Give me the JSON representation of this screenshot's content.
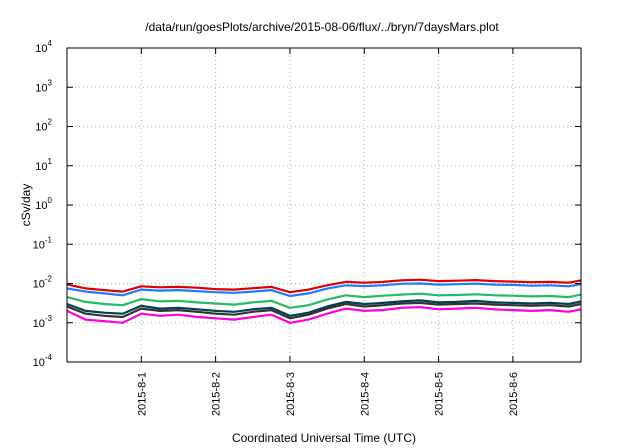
{
  "chart_data": {
    "type": "line",
    "title": "/data/run/goesPlots/archive/2015-08-06/flux/../bryn/7daysMars.plot",
    "xlabel": "Coordinated Universal Time (UTC)",
    "ylabel": "cSv/day",
    "yscale": "log",
    "ylim": [
      0.0001,
      10000
    ],
    "y_ticks": [
      {
        "base": "10",
        "exp": "4",
        "value": 10000
      },
      {
        "base": "10",
        "exp": "3",
        "value": 1000
      },
      {
        "base": "10",
        "exp": "2",
        "value": 100
      },
      {
        "base": "10",
        "exp": "1",
        "value": 10
      },
      {
        "base": "10",
        "exp": "0",
        "value": 1
      },
      {
        "base": "10",
        "exp": "-1",
        "value": 0.1
      },
      {
        "base": "10",
        "exp": "-2",
        "value": 0.01
      },
      {
        "base": "10",
        "exp": "-3",
        "value": 0.001
      },
      {
        "base": "10",
        "exp": "-4",
        "value": 0.0001
      }
    ],
    "xlim": [
      "2015-07-31T00:00",
      "2015-08-06T22:00"
    ],
    "x_ticks": [
      "2015-8-1",
      "2015-8-2",
      "2015-8-3",
      "2015-8-4",
      "2015-8-5",
      "2015-8-6"
    ],
    "grid": true,
    "legend": false,
    "x": [
      "2015-07-31T00:00",
      "2015-07-31T06:00",
      "2015-07-31T12:00",
      "2015-07-31T18:00",
      "2015-08-01T00:00",
      "2015-08-01T06:00",
      "2015-08-01T12:00",
      "2015-08-01T18:00",
      "2015-08-02T00:00",
      "2015-08-02T06:00",
      "2015-08-02T12:00",
      "2015-08-02T18:00",
      "2015-08-03T00:00",
      "2015-08-03T06:00",
      "2015-08-03T12:00",
      "2015-08-03T18:00",
      "2015-08-04T00:00",
      "2015-08-04T06:00",
      "2015-08-04T12:00",
      "2015-08-04T18:00",
      "2015-08-05T00:00",
      "2015-08-05T06:00",
      "2015-08-05T12:00",
      "2015-08-05T18:00",
      "2015-08-06T00:00",
      "2015-08-06T06:00",
      "2015-08-06T12:00",
      "2015-08-06T18:00",
      "2015-08-06T22:00"
    ],
    "series": [
      {
        "color": "#dd0000",
        "values": [
          0.0095,
          0.0075,
          0.0068,
          0.0062,
          0.0085,
          0.008,
          0.0082,
          0.0078,
          0.0072,
          0.007,
          0.0076,
          0.0082,
          0.006,
          0.007,
          0.009,
          0.011,
          0.0105,
          0.011,
          0.012,
          0.0125,
          0.0115,
          0.0118,
          0.0122,
          0.0115,
          0.0112,
          0.0108,
          0.011,
          0.0105,
          0.012
        ]
      },
      {
        "color": "#1e7bff",
        "values": [
          0.0075,
          0.0062,
          0.0056,
          0.005,
          0.007,
          0.0066,
          0.0068,
          0.0064,
          0.006,
          0.0058,
          0.0062,
          0.0068,
          0.0048,
          0.0056,
          0.0074,
          0.009,
          0.0086,
          0.009,
          0.0098,
          0.01,
          0.0094,
          0.0096,
          0.0099,
          0.0094,
          0.0092,
          0.0088,
          0.009,
          0.0085,
          0.0096
        ]
      },
      {
        "color": "#22bb66",
        "values": [
          0.0045,
          0.0034,
          0.003,
          0.0028,
          0.004,
          0.0035,
          0.0036,
          0.0033,
          0.0031,
          0.0029,
          0.0033,
          0.0036,
          0.0024,
          0.0028,
          0.0039,
          0.005,
          0.0045,
          0.0049,
          0.0052,
          0.0055,
          0.005,
          0.0051,
          0.0053,
          0.005,
          0.0049,
          0.0047,
          0.0048,
          0.0045,
          0.0052
        ]
      },
      {
        "color": "#004050",
        "values": [
          0.003,
          0.002,
          0.0018,
          0.0017,
          0.0027,
          0.0023,
          0.0024,
          0.0022,
          0.002,
          0.0019,
          0.0022,
          0.0024,
          0.0015,
          0.0018,
          0.0026,
          0.0034,
          0.003,
          0.0032,
          0.0035,
          0.0037,
          0.0033,
          0.0034,
          0.0036,
          0.0033,
          0.0032,
          0.0031,
          0.0032,
          0.003,
          0.0035
        ]
      },
      {
        "color": "#333333",
        "values": [
          0.0026,
          0.0017,
          0.0015,
          0.0014,
          0.0023,
          0.002,
          0.0021,
          0.0019,
          0.0017,
          0.0016,
          0.0019,
          0.0021,
          0.0013,
          0.0016,
          0.0023,
          0.003,
          0.0026,
          0.0028,
          0.0031,
          0.0032,
          0.0029,
          0.003,
          0.0031,
          0.0029,
          0.0028,
          0.0027,
          0.0028,
          0.0026,
          0.003
        ]
      },
      {
        "color": "#ff00dd",
        "values": [
          0.002,
          0.0012,
          0.0011,
          0.001,
          0.0017,
          0.0015,
          0.0016,
          0.0014,
          0.0013,
          0.0012,
          0.0014,
          0.0016,
          0.001,
          0.0012,
          0.0017,
          0.0023,
          0.002,
          0.0021,
          0.0024,
          0.0025,
          0.0022,
          0.0023,
          0.0024,
          0.0022,
          0.0021,
          0.002,
          0.0021,
          0.0019,
          0.0022
        ]
      }
    ]
  }
}
